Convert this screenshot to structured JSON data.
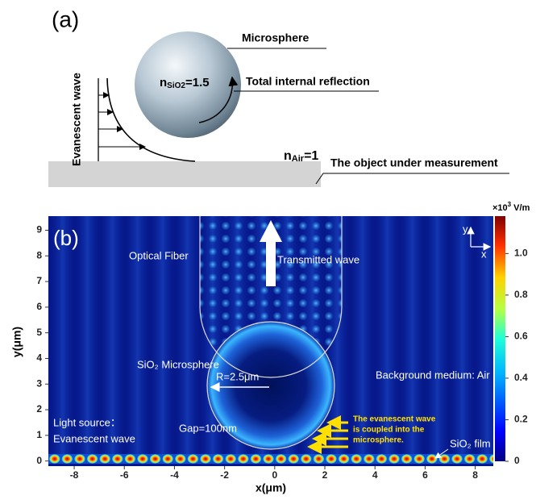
{
  "panel_a": {
    "label": "(a)",
    "microsphere": "Microsphere",
    "index_sphere": {
      "symbol": "n",
      "subscript": "SiO2",
      "rest": "=1.5"
    },
    "total_internal_reflection": "Total internal reflection",
    "evanescent_wave": "Evanescent wave",
    "index_air": {
      "symbol": "n",
      "subscript": "Air",
      "rest": "=1"
    },
    "object": "The object under measurement"
  },
  "panel_b": {
    "label": "(b)",
    "optical_fiber": "Optical Fiber",
    "transmitted_wave": "Transmitted wave",
    "microsphere": "SiO₂ Microsphere",
    "background": "Background medium: Air",
    "radius": "R=2.5μm",
    "light_source": [
      "Light source：",
      "Evanescent wave"
    ],
    "gap": "Gap=100nm",
    "coupling_note": [
      "The evanescent wave",
      "is coupled into the",
      "microsphere."
    ],
    "film": "SiO₂ film",
    "orientation": {
      "y": "y",
      "x": "x"
    },
    "x_axis": {
      "label": "x(μm)",
      "lim": [
        -9.03,
        8.72
      ],
      "ticks": [
        -8,
        -6,
        -4,
        -2,
        0,
        2,
        4,
        6,
        8
      ]
    },
    "y_axis": {
      "label": "y(μm)",
      "lim": [
        -0.2,
        9.55
      ],
      "ticks": [
        0,
        1,
        2,
        3,
        4,
        5,
        6,
        7,
        8,
        9
      ]
    },
    "colorbar": {
      "unit": {
        "prefix": "×10",
        "power": "3",
        "rest": " V/m"
      },
      "lim": [
        0,
        1.18
      ],
      "ticks": [
        0,
        0.2,
        0.4,
        0.6,
        0.8,
        {
          "value": 1,
          "label": "1.0"
        }
      ]
    }
  }
}
